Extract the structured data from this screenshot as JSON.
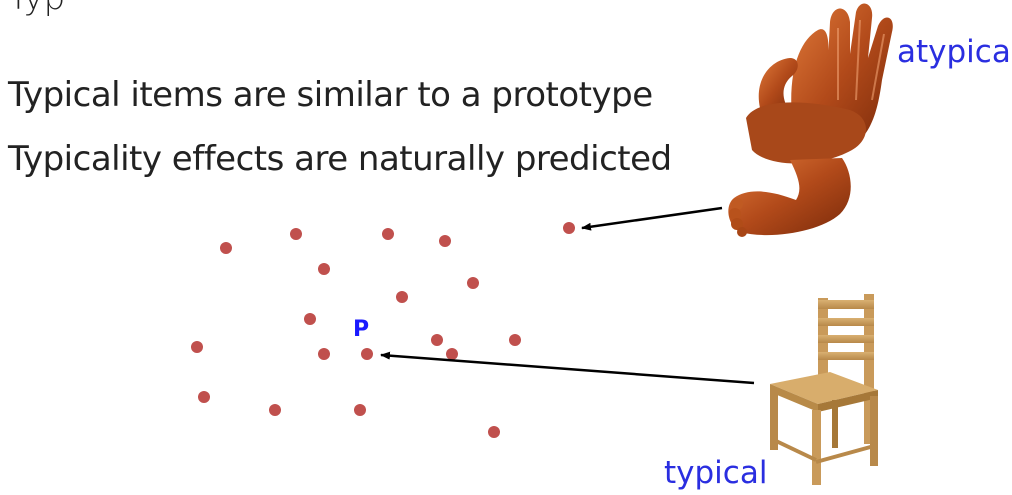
{
  "slide": {
    "cut_heading": "Typ",
    "bullets": [
      "Typical items are similar to a prototype",
      "Typicality effects are naturally predicted"
    ],
    "labels": {
      "atypical": "atypical",
      "typical": "typical",
      "prototype": "P"
    }
  },
  "colors": {
    "dot": "#c0504d",
    "prototype_label": "#1a1aff",
    "label_blue": "#2a2ee0",
    "arrow": "#000000"
  },
  "icons": {
    "atypical_image": "hand-foot-chair",
    "typical_image": "wooden-chair"
  }
}
